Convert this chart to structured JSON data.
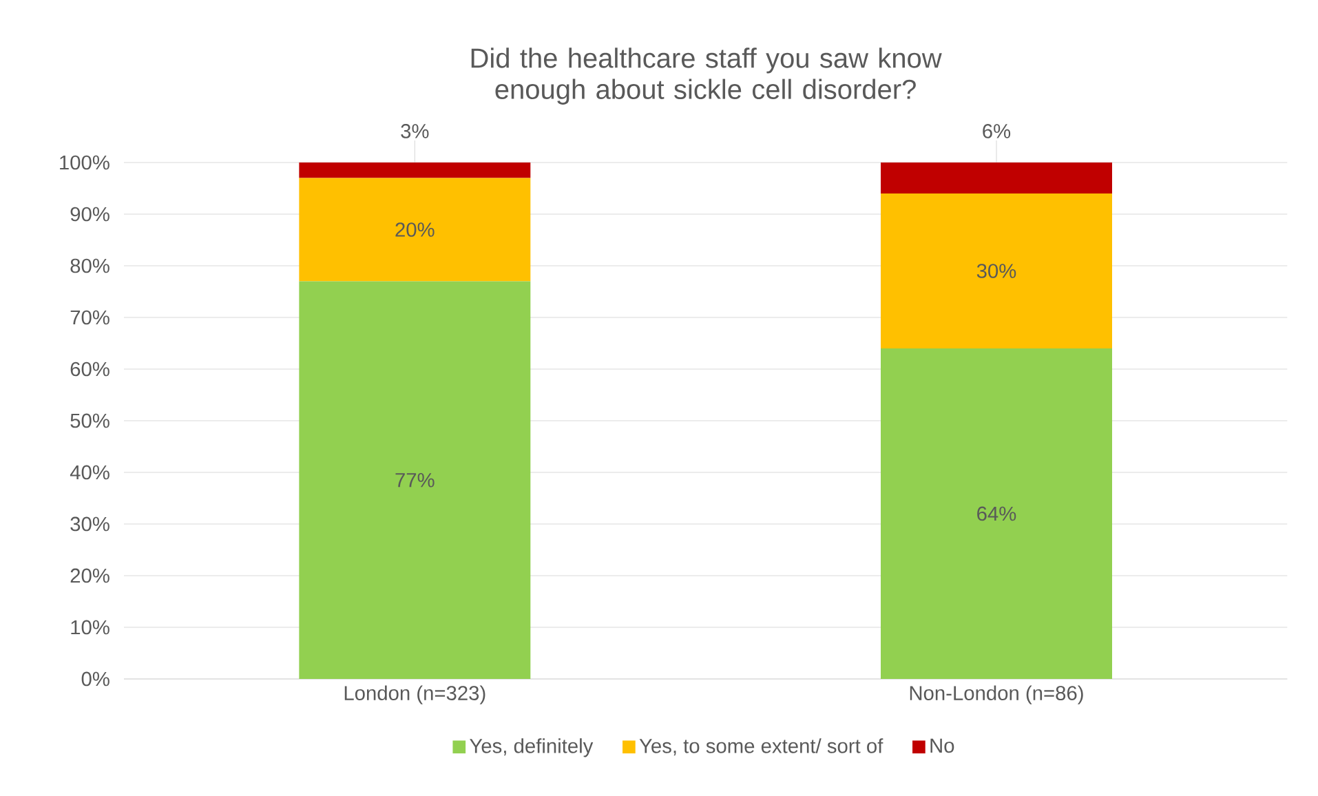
{
  "chart_data": {
    "type": "bar",
    "title": "Did the healthcare staff you saw know enough about sickle cell disorder?",
    "categories": [
      "London (n=323)",
      "Non-London (n=86)"
    ],
    "stacked": true,
    "series": [
      {
        "name": "Yes, definitely",
        "color": "#92d050",
        "values": [
          77,
          64
        ],
        "value_labels": [
          "77%",
          "64%"
        ]
      },
      {
        "name": "Yes, to some extent/ sort of",
        "color": "#ffc000",
        "values": [
          20,
          30
        ],
        "value_labels": [
          "20%",
          "30%"
        ]
      },
      {
        "name": "No",
        "color": "#c00000",
        "values": [
          3,
          6
        ],
        "value_labels": [
          "3%",
          "6%"
        ]
      }
    ],
    "ylim": [
      0,
      100
    ],
    "yticks": [
      {
        "value": 0,
        "label": "0%"
      },
      {
        "value": 10,
        "label": "10%"
      },
      {
        "value": 20,
        "label": "20%"
      },
      {
        "value": 30,
        "label": "30%"
      },
      {
        "value": 40,
        "label": "40%"
      },
      {
        "value": 50,
        "label": "50%"
      },
      {
        "value": 60,
        "label": "60%"
      },
      {
        "value": 70,
        "label": "70%"
      },
      {
        "value": 80,
        "label": "80%"
      },
      {
        "value": 90,
        "label": "90%"
      },
      {
        "value": 100,
        "label": "100%"
      }
    ],
    "grid": "y",
    "legend": "bottom"
  }
}
